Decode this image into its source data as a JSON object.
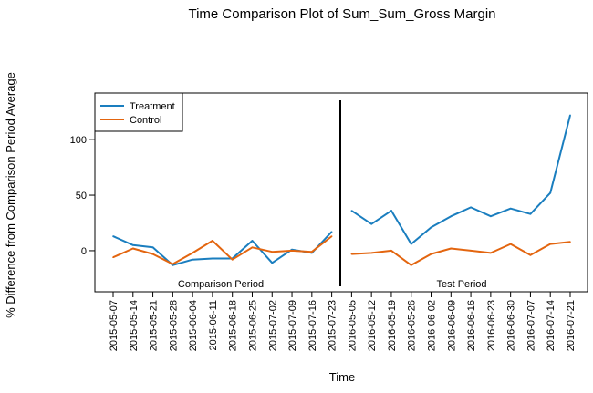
{
  "chart_data": {
    "type": "line",
    "title": "Time Comparison Plot of Sum_Sum_Gross Margin",
    "xlabel": "Time",
    "ylabel": "% Difference from Comparison Period Average",
    "ylim": [
      -37,
      142
    ],
    "yticks": [
      0,
      50,
      100
    ],
    "grid": false,
    "legend_position": "top-left",
    "categories": [
      "2015-05-07",
      "2015-05-14",
      "2015-05-21",
      "2015-05-28",
      "2015-06-04",
      "2015-06-11",
      "2015-06-18",
      "2015-06-25",
      "2015-07-02",
      "2015-07-09",
      "2015-07-16",
      "2015-07-23",
      "2016-05-05",
      "2016-05-12",
      "2016-05-19",
      "2016-05-26",
      "2016-06-02",
      "2016-06-09",
      "2016-06-16",
      "2016-06-23",
      "2016-06-30",
      "2016-07-07",
      "2016-07-14",
      "2016-07-21"
    ],
    "series": [
      {
        "name": "Treatment",
        "color": "#1a7ebf",
        "values": [
          13,
          5,
          3,
          -13,
          -8,
          -7,
          -7,
          9,
          -11,
          1,
          -2,
          17,
          36,
          24,
          36,
          6,
          21,
          31,
          39,
          31,
          38,
          33,
          52,
          122
        ]
      },
      {
        "name": "Control",
        "color": "#e3650f",
        "values": [
          -6,
          2,
          -3,
          -12,
          -2,
          9,
          -8,
          3,
          -1,
          0,
          -1,
          13,
          -3,
          -2,
          0,
          -13,
          -3,
          2,
          0,
          -2,
          6,
          -4,
          6,
          8
        ]
      }
    ],
    "periods": [
      {
        "label": "Comparison Period"
      },
      {
        "label": "Test Period"
      }
    ]
  }
}
